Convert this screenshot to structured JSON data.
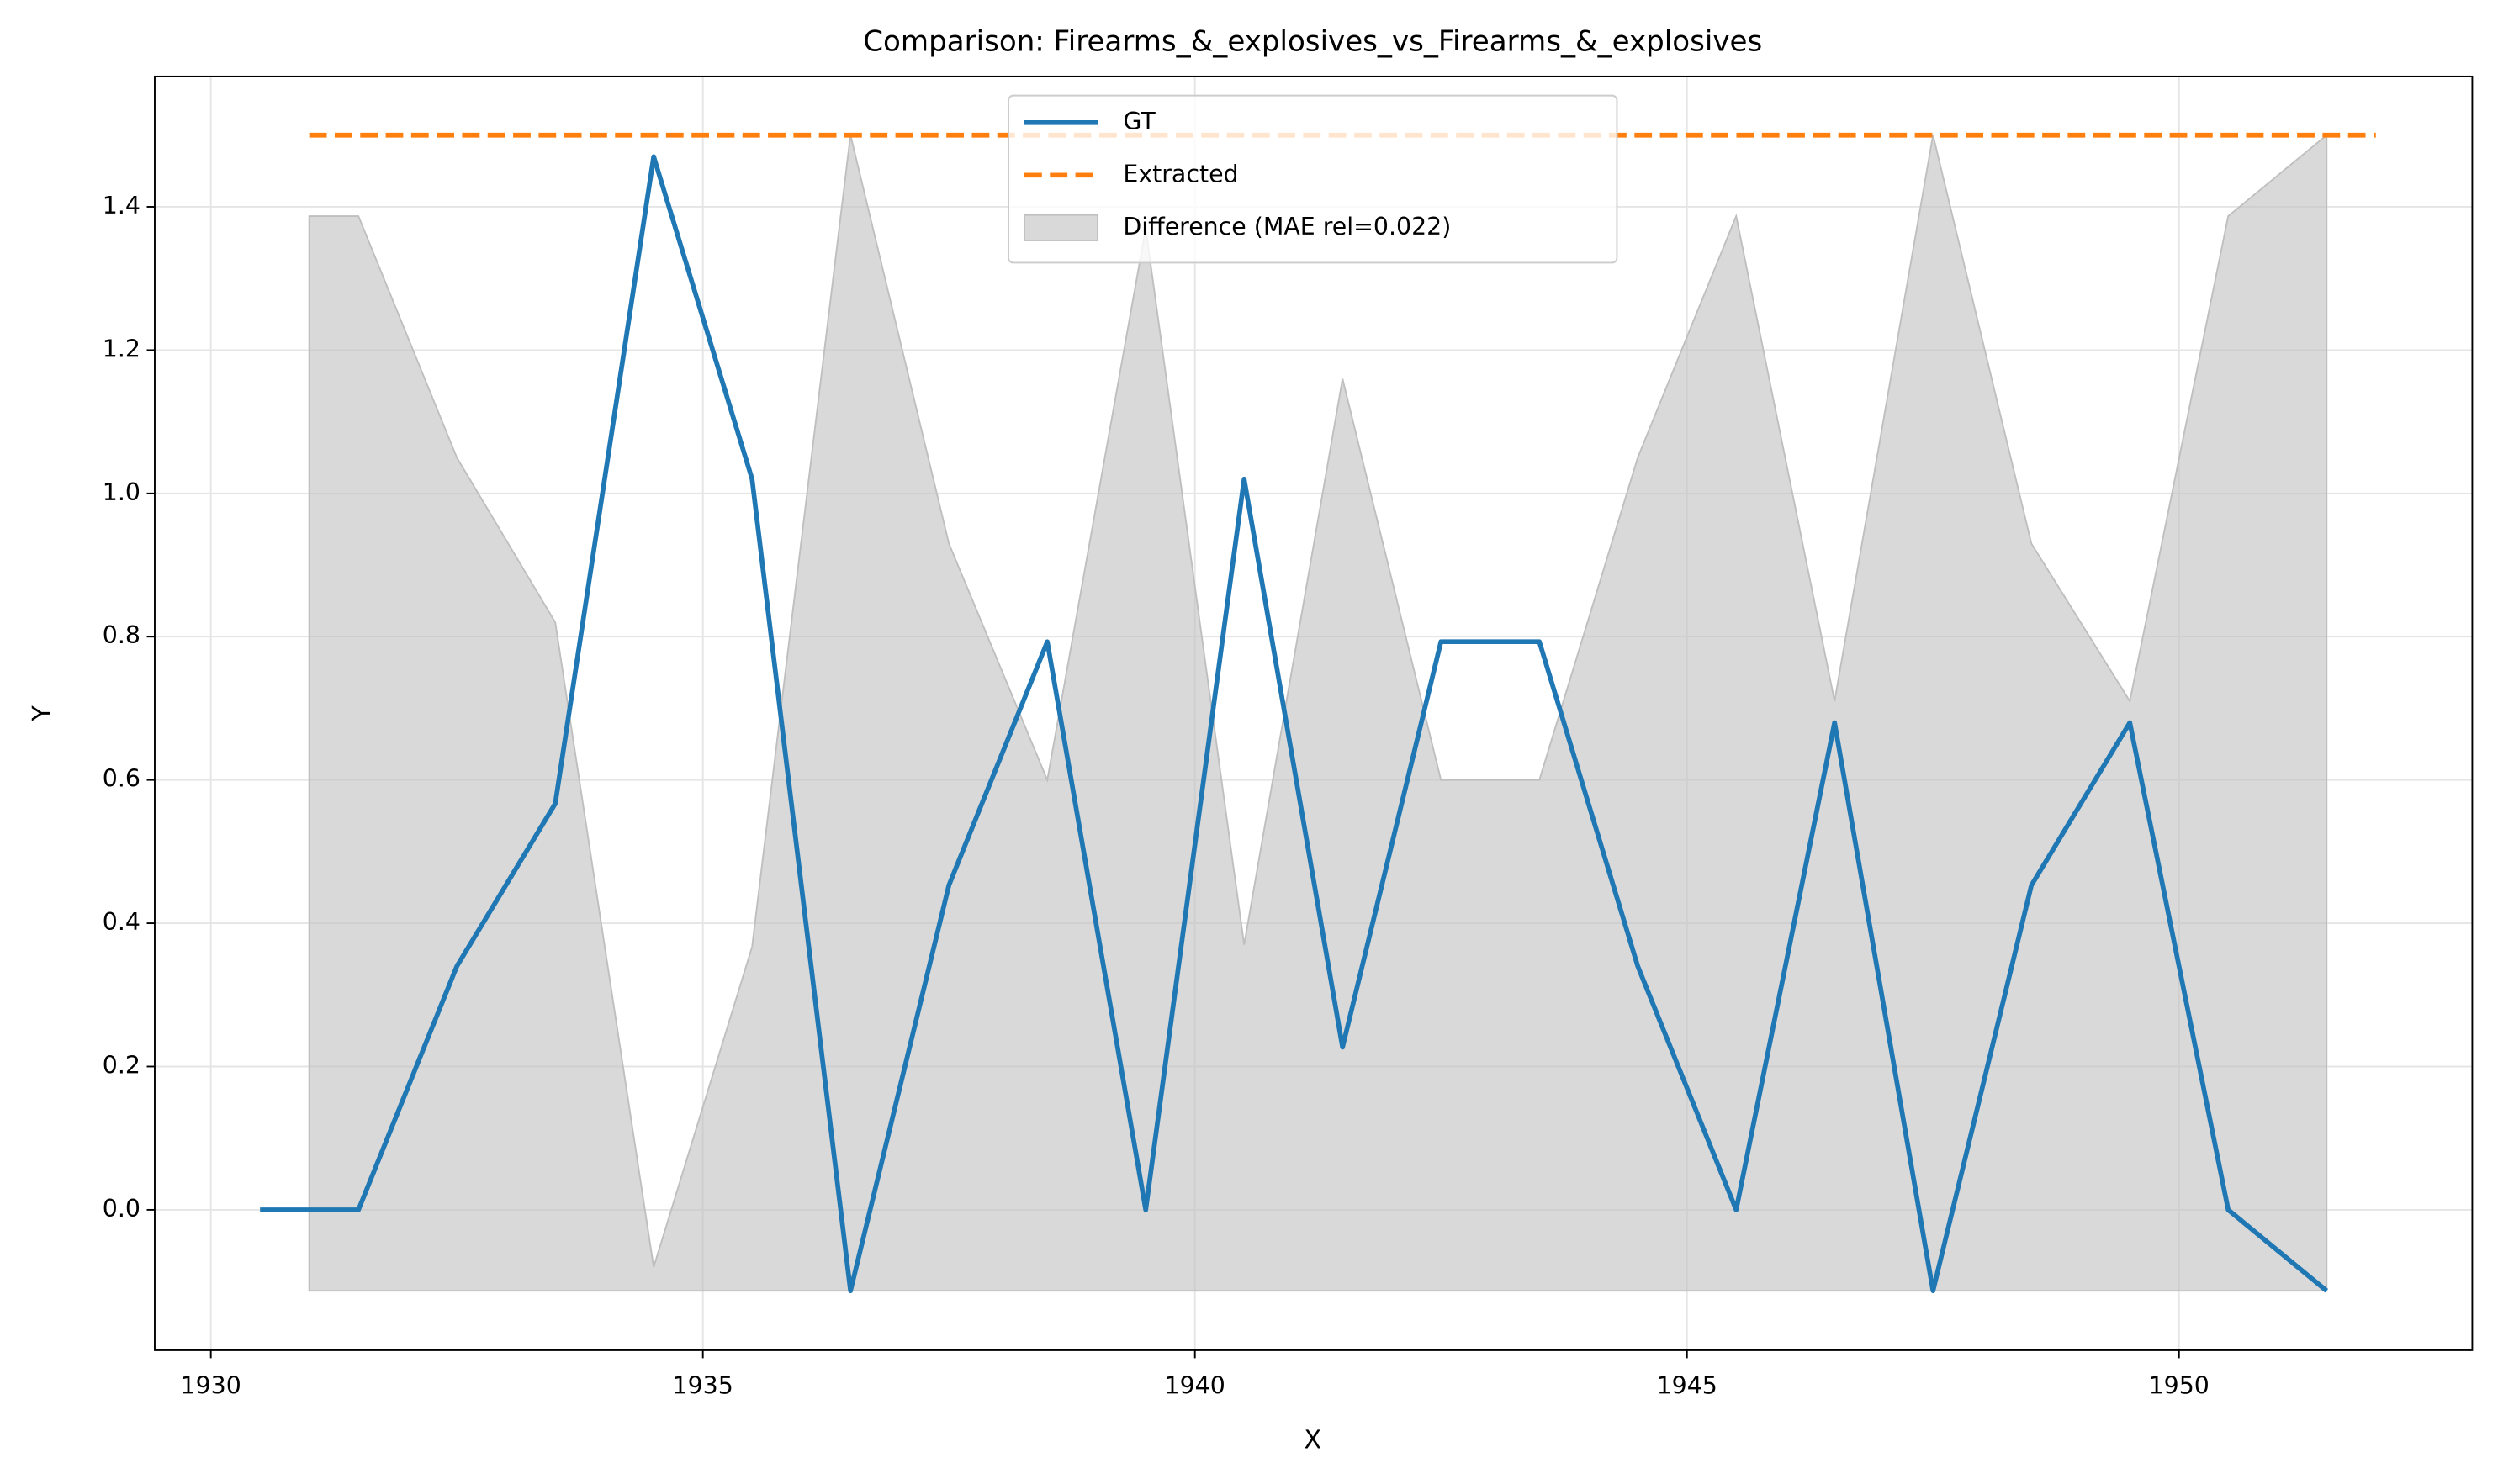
{
  "chart_data": {
    "type": "line",
    "title": "Comparison: Firearms_&_explosives_vs_Firearms_&_explosives",
    "x_label": "X",
    "y_label": "Y",
    "xlim": [
      1929.43,
      1952.98
    ],
    "ylim": [
      -0.196,
      1.582
    ],
    "xticks": [
      1930,
      1935,
      1940,
      1945,
      1950
    ],
    "yticks": [
      {
        "value": 0,
        "label": "0.0"
      },
      0.2,
      0.4,
      0.6,
      0.8,
      {
        "value": 1,
        "label": "1.0"
      },
      1.2,
      1.4
    ],
    "grid": true,
    "legend": "upper center",
    "series": [
      {
        "name": "GT",
        "color": "#1f77b4",
        "style": "solid",
        "x": [
          1930.5,
          1931.5,
          1932.5,
          1933.5,
          1934.5,
          1935.5,
          1936.5,
          1937.5,
          1938.5,
          1939.5,
          1940.5,
          1941.5,
          1942.5,
          1943.5,
          1944.5,
          1945.5,
          1946.5,
          1947.5,
          1948.5,
          1949.5,
          1950.5,
          1951.5
        ],
        "values": [
          0,
          0,
          0.34,
          0.567,
          1.47,
          1.02,
          -0.113,
          0.453,
          0.793,
          0,
          1.02,
          0.227,
          0.793,
          0.793,
          0.34,
          0,
          0.68,
          -0.113,
          0.453,
          0.68,
          0,
          -0.113
        ]
      },
      {
        "name": "Extracted",
        "color": "#ff7f0e",
        "style": "dashed",
        "x": [
          1931,
          1952
        ],
        "values": [
          1.5,
          1.5
        ]
      }
    ],
    "areas": [
      {
        "name": "Difference (MAE rel=0.022)",
        "color": "#bfbfbf",
        "x": [
          1931,
          1931.5,
          1932.5,
          1933.5,
          1934.5,
          1935.5,
          1936.5,
          1937.5,
          1938.5,
          1939.5,
          1940.5,
          1941.5,
          1942.5,
          1943.5,
          1944.5,
          1945.5,
          1946.5,
          1947.5,
          1948.5,
          1949.5,
          1950.5,
          1951.5
        ],
        "y1": [
          1.387,
          1.387,
          1.05,
          0.82,
          -0.08,
          0.367,
          1.5,
          0.93,
          0.6,
          1.37,
          0.37,
          1.16,
          0.6,
          0.6,
          1.05,
          1.387,
          0.71,
          1.5,
          0.93,
          0.71,
          1.387,
          1.5
        ],
        "y2": [
          -0.113,
          -0.113,
          -0.113,
          -0.113,
          -0.113,
          -0.113,
          -0.113,
          -0.113,
          -0.113,
          -0.113,
          -0.113,
          -0.113,
          -0.113,
          -0.113,
          -0.113,
          -0.113,
          -0.113,
          -0.113,
          -0.113,
          -0.113,
          -0.113,
          -0.113
        ]
      }
    ]
  }
}
